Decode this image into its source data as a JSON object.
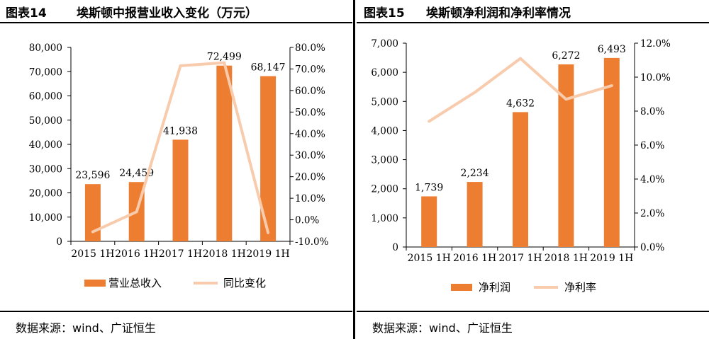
{
  "left": {
    "fig_no": "图表14",
    "title": "埃斯顿中报营业收入变化（万元）",
    "source": "数据来源：wind、广证恒生"
  },
  "right": {
    "fig_no": "图表15",
    "title": "埃斯顿净利润和净利率情况",
    "source": "数据来源：wind、广证恒生"
  },
  "colors": {
    "bar": "#ED7D31",
    "line": "#F8CBAD",
    "axis": "#000000"
  },
  "chart_data": [
    {
      "type": "bar",
      "categories": [
        "2015 1H",
        "2016 1H",
        "2017 1H",
        "2018 1H",
        "2019 1H"
      ],
      "series": [
        {
          "name": "营业总收入",
          "type": "bar",
          "axis": "left",
          "values": [
            23596,
            24459,
            41938,
            72499,
            68147
          ],
          "labels": [
            "23,596",
            "24,459",
            "41,938",
            "72,499",
            "68,147"
          ]
        },
        {
          "name": "同比变化",
          "type": "line",
          "axis": "right",
          "values": [
            -5.6,
            3.7,
            71.5,
            72.9,
            -6.0
          ]
        }
      ],
      "ylim": [
        0,
        80000
      ],
      "yticks": [
        "0",
        "10,000",
        "20,000",
        "30,000",
        "40,000",
        "50,000",
        "60,000",
        "70,000",
        "80,000"
      ],
      "y2lim": [
        -10,
        80
      ],
      "y2ticks": [
        "-10.0%",
        "0.0%",
        "10.0%",
        "20.0%",
        "30.0%",
        "40.0%",
        "50.0%",
        "60.0%",
        "70.0%",
        "80.0%"
      ],
      "grid": false,
      "legend": "bottom"
    },
    {
      "type": "bar",
      "categories": [
        "2015 1H",
        "2016 1H",
        "2017 1H",
        "2018 1H",
        "2019 1H"
      ],
      "series": [
        {
          "name": "净利润",
          "type": "bar",
          "axis": "left",
          "values": [
            1739,
            2234,
            4632,
            6272,
            6493
          ],
          "labels": [
            "1,739",
            "2,234",
            "4,632",
            "6,272",
            "6,493"
          ]
        },
        {
          "name": "净利率",
          "type": "line",
          "axis": "right",
          "values": [
            7.4,
            9.1,
            11.1,
            8.7,
            9.5
          ]
        }
      ],
      "ylim": [
        0,
        7000
      ],
      "yticks": [
        "0",
        "1,000",
        "2,000",
        "3,000",
        "4,000",
        "5,000",
        "6,000",
        "7,000"
      ],
      "y2lim": [
        0,
        12
      ],
      "y2ticks": [
        "0.0%",
        "2.0%",
        "4.0%",
        "6.0%",
        "8.0%",
        "10.0%",
        "12.0%"
      ],
      "grid": false,
      "legend": "bottom"
    }
  ]
}
